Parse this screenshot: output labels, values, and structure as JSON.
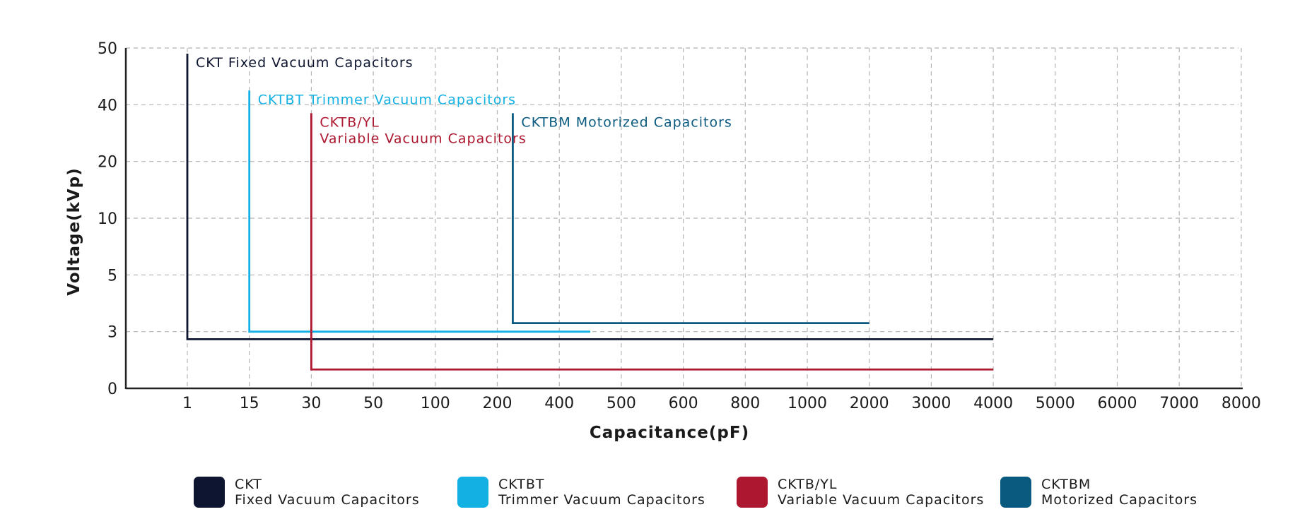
{
  "chart_data": {
    "type": "line",
    "xlabel": "Capacitance(pF)",
    "ylabel": "Voltage(kVp)",
    "x_ticks": [
      "1",
      "15",
      "30",
      "50",
      "100",
      "200",
      "400",
      "500",
      "600",
      "800",
      "1000",
      "2000",
      "3000",
      "4000",
      "5000",
      "6000",
      "7000",
      "8000"
    ],
    "y_ticks": [
      "0",
      "3",
      "5",
      "10",
      "20",
      "40",
      "50"
    ],
    "grid": true,
    "series": [
      {
        "id": "ckt",
        "name": "CKT Fixed Vacuum Capacitors",
        "label_lines": [
          "CKT Fixed Vacuum Capacitors"
        ],
        "legend_lines": [
          "CKT",
          "Fixed Vacuum Capacitors"
        ],
        "color": "#0d1530",
        "x_range": [
          1,
          4000
        ],
        "v_min": 2.6,
        "v_max": 49
      },
      {
        "id": "cktbt",
        "name": "CKTBT Trimmer Vacuum Capacitors",
        "label_lines": [
          "CKTBT Trimmer Vacuum Capacitors"
        ],
        "legend_lines": [
          "CKTBT",
          "Trimmer Vacuum Capacitors"
        ],
        "color": "#12b0e3",
        "x_range": [
          15,
          450
        ],
        "v_min": 3,
        "v_max": 42.5
      },
      {
        "id": "cktbyl",
        "name": "CKTB/YL Variable Vacuum Capacitors",
        "label_lines": [
          "CKTB/YL",
          "Variable Vacuum Capacitors"
        ],
        "legend_lines": [
          "CKTB/YL",
          "Variable Vacuum Capacitors"
        ],
        "color": "#ad1730",
        "x_range": [
          30,
          4000
        ],
        "v_min": 1,
        "v_max": 37
      },
      {
        "id": "cktbm",
        "name": "CKTBM Motorized Capacitors",
        "label_lines": [
          "CKTBM Motorized Capacitors"
        ],
        "legend_lines": [
          "CKTBM",
          "Motorized Capacitors"
        ],
        "color": "#0a5a80",
        "x_range": [
          250,
          2000
        ],
        "v_min": 3.3,
        "v_max": 37
      }
    ]
  }
}
